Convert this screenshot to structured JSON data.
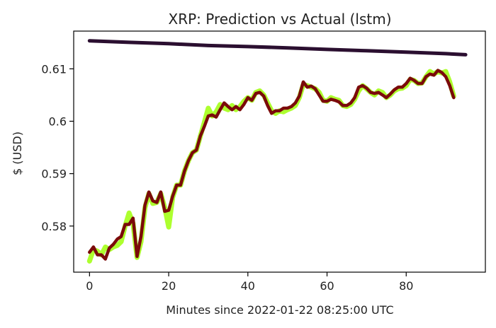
{
  "chart_data": {
    "type": "line",
    "title": "XRP: Prediction vs Actual (lstm)",
    "xlabel": "Minutes since 2022-01-22 08:25:00 UTC",
    "ylabel": "$ (USD)",
    "xlim": [
      -4,
      100
    ],
    "ylim": [
      0.5712,
      0.6172
    ],
    "xticks": [
      0,
      20,
      40,
      60,
      80
    ],
    "yticks": [
      0.58,
      0.59,
      0.6,
      0.61
    ],
    "ytick_labels": [
      "0.58",
      "0.59",
      "0.6",
      "0.61"
    ],
    "grid": false,
    "legend": "none",
    "series": [
      {
        "color": "#ADFF2F",
        "points": [
          [
            0,
            0.5733
          ],
          [
            1,
            0.5755
          ],
          [
            2,
            0.5752
          ],
          [
            3,
            0.5745
          ],
          [
            4,
            0.576
          ],
          [
            5,
            0.5755
          ],
          [
            6,
            0.576
          ],
          [
            7,
            0.5763
          ],
          [
            8,
            0.577
          ],
          [
            9,
            0.58
          ],
          [
            10,
            0.5825
          ],
          [
            11,
            0.5805
          ],
          [
            12,
            0.574
          ],
          [
            13,
            0.577
          ],
          [
            14,
            0.5835
          ],
          [
            15,
            0.5862
          ],
          [
            16,
            0.5843
          ],
          [
            17,
            0.5845
          ],
          [
            18,
            0.5862
          ],
          [
            19,
            0.5835
          ],
          [
            20,
            0.5798
          ],
          [
            21,
            0.5855
          ],
          [
            22,
            0.5878
          ],
          [
            23,
            0.5878
          ],
          [
            24,
            0.5905
          ],
          [
            25,
            0.5925
          ],
          [
            26,
            0.594
          ],
          [
            27,
            0.5945
          ],
          [
            28,
            0.5972
          ],
          [
            29,
            0.5998
          ],
          [
            30,
            0.6025
          ],
          [
            31,
            0.601
          ],
          [
            32,
            0.6018
          ],
          [
            33,
            0.6032
          ],
          [
            34,
            0.6025
          ],
          [
            35,
            0.6022
          ],
          [
            36,
            0.603
          ],
          [
            37,
            0.6022
          ],
          [
            38,
            0.6028
          ],
          [
            39,
            0.6038
          ],
          [
            40,
            0.6045
          ],
          [
            41,
            0.604
          ],
          [
            42,
            0.6055
          ],
          [
            43,
            0.6058
          ],
          [
            44,
            0.605
          ],
          [
            45,
            0.6035
          ],
          [
            46,
            0.602
          ],
          [
            47,
            0.6015
          ],
          [
            48,
            0.602
          ],
          [
            49,
            0.6018
          ],
          [
            50,
            0.6022
          ],
          [
            51,
            0.6025
          ],
          [
            52,
            0.603
          ],
          [
            53,
            0.6045
          ],
          [
            54,
            0.607
          ],
          [
            55,
            0.6068
          ],
          [
            56,
            0.6065
          ],
          [
            57,
            0.6062
          ],
          [
            58,
            0.6055
          ],
          [
            59,
            0.604
          ],
          [
            60,
            0.6038
          ],
          [
            61,
            0.6045
          ],
          [
            62,
            0.6042
          ],
          [
            63,
            0.604
          ],
          [
            64,
            0.603
          ],
          [
            65,
            0.6028
          ],
          [
            66,
            0.6032
          ],
          [
            67,
            0.6042
          ],
          [
            68,
            0.6058
          ],
          [
            69,
            0.6068
          ],
          [
            70,
            0.6062
          ],
          [
            71,
            0.6055
          ],
          [
            72,
            0.605
          ],
          [
            73,
            0.6058
          ],
          [
            74,
            0.6055
          ],
          [
            75,
            0.6045
          ],
          [
            76,
            0.605
          ],
          [
            77,
            0.6058
          ],
          [
            78,
            0.6062
          ],
          [
            79,
            0.6063
          ],
          [
            80,
            0.6068
          ],
          [
            81,
            0.608
          ],
          [
            82,
            0.6078
          ],
          [
            83,
            0.6072
          ],
          [
            84,
            0.6073
          ],
          [
            85,
            0.6085
          ],
          [
            86,
            0.6095
          ],
          [
            87,
            0.609
          ],
          [
            88,
            0.6095
          ],
          [
            89,
            0.6092
          ],
          [
            90,
            0.6095
          ],
          [
            91,
            0.6075
          ],
          [
            92,
            0.6048
          ]
        ]
      },
      {
        "color": "#7B0A0A",
        "points": [
          [
            0,
            0.575
          ],
          [
            1,
            0.576
          ],
          [
            2,
            0.5745
          ],
          [
            3,
            0.5745
          ],
          [
            4,
            0.5737
          ],
          [
            5,
            0.5758
          ],
          [
            6,
            0.5765
          ],
          [
            7,
            0.5775
          ],
          [
            8,
            0.578
          ],
          [
            9,
            0.5803
          ],
          [
            10,
            0.5803
          ],
          [
            11,
            0.5815
          ],
          [
            12,
            0.5742
          ],
          [
            13,
            0.578
          ],
          [
            14,
            0.584
          ],
          [
            15,
            0.5865
          ],
          [
            16,
            0.5848
          ],
          [
            17,
            0.5845
          ],
          [
            18,
            0.5865
          ],
          [
            19,
            0.5828
          ],
          [
            20,
            0.583
          ],
          [
            21,
            0.5857
          ],
          [
            22,
            0.5878
          ],
          [
            23,
            0.5878
          ],
          [
            24,
            0.5905
          ],
          [
            25,
            0.5925
          ],
          [
            26,
            0.594
          ],
          [
            27,
            0.5945
          ],
          [
            28,
            0.5972
          ],
          [
            29,
            0.599
          ],
          [
            30,
            0.601
          ],
          [
            31,
            0.6012
          ],
          [
            32,
            0.6008
          ],
          [
            33,
            0.6022
          ],
          [
            34,
            0.6035
          ],
          [
            35,
            0.6028
          ],
          [
            36,
            0.6022
          ],
          [
            37,
            0.6028
          ],
          [
            38,
            0.6022
          ],
          [
            39,
            0.6032
          ],
          [
            40,
            0.6045
          ],
          [
            41,
            0.604
          ],
          [
            42,
            0.6053
          ],
          [
            43,
            0.6055
          ],
          [
            44,
            0.6048
          ],
          [
            45,
            0.603
          ],
          [
            46,
            0.6015
          ],
          [
            47,
            0.602
          ],
          [
            48,
            0.602
          ],
          [
            49,
            0.6025
          ],
          [
            50,
            0.6025
          ],
          [
            51,
            0.6028
          ],
          [
            52,
            0.6035
          ],
          [
            53,
            0.6048
          ],
          [
            54,
            0.6075
          ],
          [
            55,
            0.6065
          ],
          [
            56,
            0.6067
          ],
          [
            57,
            0.6062
          ],
          [
            58,
            0.605
          ],
          [
            59,
            0.6038
          ],
          [
            60,
            0.6038
          ],
          [
            61,
            0.6042
          ],
          [
            62,
            0.604
          ],
          [
            63,
            0.6037
          ],
          [
            64,
            0.603
          ],
          [
            65,
            0.603
          ],
          [
            66,
            0.6035
          ],
          [
            67,
            0.6045
          ],
          [
            68,
            0.6065
          ],
          [
            69,
            0.6068
          ],
          [
            70,
            0.6063
          ],
          [
            71,
            0.6055
          ],
          [
            72,
            0.6053
          ],
          [
            73,
            0.6055
          ],
          [
            74,
            0.605
          ],
          [
            75,
            0.6045
          ],
          [
            76,
            0.6052
          ],
          [
            77,
            0.606
          ],
          [
            78,
            0.6065
          ],
          [
            79,
            0.6065
          ],
          [
            80,
            0.6072
          ],
          [
            81,
            0.6082
          ],
          [
            82,
            0.6078
          ],
          [
            83,
            0.6072
          ],
          [
            84,
            0.6072
          ],
          [
            85,
            0.6085
          ],
          [
            86,
            0.609
          ],
          [
            87,
            0.6088
          ],
          [
            88,
            0.6097
          ],
          [
            89,
            0.6093
          ],
          [
            90,
            0.6085
          ],
          [
            91,
            0.6068
          ],
          [
            92,
            0.6045
          ]
        ]
      },
      {
        "color": "#2B0F30",
        "points": [
          [
            0,
            0.61535
          ],
          [
            10,
            0.61505
          ],
          [
            20,
            0.6148
          ],
          [
            30,
            0.61445
          ],
          [
            40,
            0.61425
          ],
          [
            50,
            0.614
          ],
          [
            60,
            0.6137
          ],
          [
            70,
            0.61345
          ],
          [
            80,
            0.6132
          ],
          [
            90,
            0.6129
          ],
          [
            95,
            0.6127
          ]
        ]
      }
    ]
  }
}
